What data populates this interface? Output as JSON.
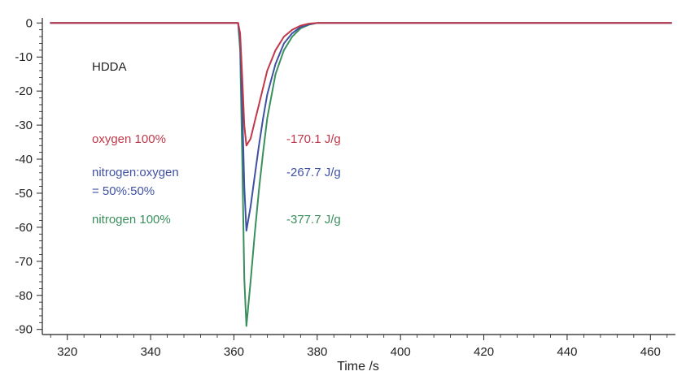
{
  "chart_data": {
    "type": "line",
    "title": "",
    "xlabel": "Time /s",
    "ylabel": "",
    "xlim": [
      314,
      466
    ],
    "ylim": [
      -91.5,
      1.5
    ],
    "x_ticks": [
      "320",
      "340",
      "360",
      "380",
      "400",
      "420",
      "440",
      "460"
    ],
    "y_ticks": [
      "0",
      "-10",
      "-20",
      "-30",
      "-40",
      "-50",
      "-60",
      "-70",
      "-80",
      "-90"
    ],
    "grid": false,
    "annotation_title": "HDDA",
    "series": [
      {
        "name": "oxygen 100%",
        "label_lines": [
          "oxygen 100%"
        ],
        "energy": "-170.1 J/g",
        "color": "#c0394b",
        "x": [
          316,
          361,
          361.5,
          362,
          362.5,
          363,
          364,
          365,
          366,
          367,
          368,
          370,
          372,
          374,
          376,
          378,
          380,
          465
        ],
        "y": [
          0,
          0,
          -3,
          -16,
          -30,
          -36,
          -34,
          -29,
          -24,
          -19,
          -14,
          -8,
          -4,
          -2,
          -0.8,
          -0.2,
          0,
          0
        ]
      },
      {
        "name": "nitrogen:oxygen = 50%:50%",
        "label_lines": [
          "nitrogen:oxygen",
          "= 50%:50%"
        ],
        "energy": "-267.7 J/g",
        "color": "#3f51a3",
        "x": [
          316,
          361,
          361.5,
          362,
          362.5,
          363,
          364,
          365,
          366,
          367,
          368,
          370,
          372,
          374,
          376,
          378,
          380,
          465
        ],
        "y": [
          0,
          0,
          -5,
          -25,
          -48,
          -61,
          -54,
          -45,
          -36,
          -28,
          -21,
          -12,
          -6,
          -3,
          -1.2,
          -0.4,
          0,
          0
        ]
      },
      {
        "name": "nitrogen 100%",
        "label_lines": [
          "nitrogen 100%"
        ],
        "energy": "-377.7 J/g",
        "color": "#3a8f5c",
        "x": [
          316,
          361,
          361.5,
          362,
          362.5,
          363,
          364,
          365,
          366,
          367,
          368,
          370,
          372,
          374,
          376,
          378,
          380,
          465
        ],
        "y": [
          0,
          0,
          -8,
          -40,
          -75,
          -89,
          -76,
          -62,
          -49,
          -38,
          -28,
          -15,
          -8,
          -4,
          -1.6,
          -0.5,
          0,
          0
        ]
      }
    ]
  }
}
